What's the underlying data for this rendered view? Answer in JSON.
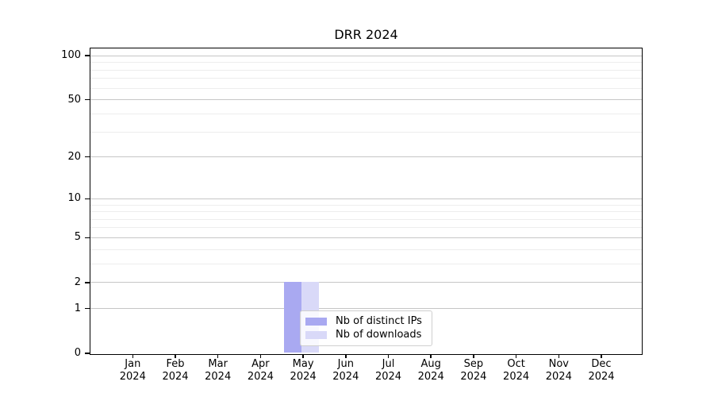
{
  "chart_data": {
    "type": "bar",
    "title": "DRR 2024",
    "categories": [
      "Jan 2024",
      "Feb 2024",
      "Mar 2024",
      "Apr 2024",
      "May 2024",
      "Jun 2024",
      "Jul 2024",
      "Aug 2024",
      "Sep 2024",
      "Oct 2024",
      "Nov 2024",
      "Dec 2024"
    ],
    "series": [
      {
        "name": "Nb of distinct IPs",
        "color": "#a9a9f1",
        "values": [
          0,
          0,
          0,
          0,
          2,
          0,
          0,
          0,
          0,
          0,
          0,
          0
        ]
      },
      {
        "name": "Nb of downloads",
        "color": "#d9d9f8",
        "values": [
          0,
          0,
          0,
          0,
          2,
          0,
          0,
          0,
          0,
          0,
          0,
          0
        ]
      }
    ],
    "xlabel": "",
    "ylabel": "",
    "yscale": "log1p",
    "ylim": [
      0,
      114
    ],
    "yticks": [
      0,
      1,
      2,
      5,
      10,
      20,
      50,
      100
    ],
    "ytick_labels": [
      "0",
      "1",
      "2",
      "5",
      "10",
      "20",
      "50",
      "100"
    ],
    "yticks_minor": [
      3,
      4,
      6,
      7,
      8,
      9,
      30,
      40,
      60,
      70,
      80,
      90
    ],
    "grid": true,
    "legend_position": "lower-center",
    "colors": {
      "grid_major": "#c6c6c6",
      "grid_minor": "#ededed",
      "axis": "#000000",
      "background": "#ffffff"
    }
  }
}
